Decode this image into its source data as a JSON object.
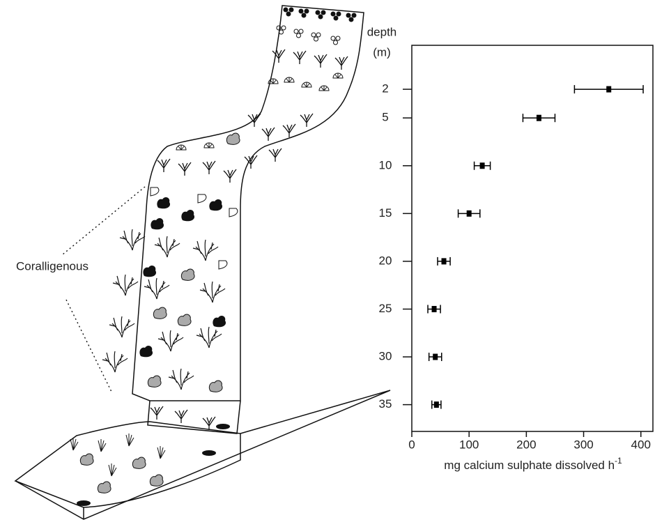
{
  "illustration": {
    "label": "Coralligenous"
  },
  "chart_data": {
    "type": "scatter",
    "ylabel": "depth",
    "ylabel_unit": "(m)",
    "xlabel": {
      "text": "mg calcium sulphate dissolved  h",
      "superscript": "-1"
    },
    "series": [
      {
        "color": "#000000",
        "y": [
          2,
          5,
          10,
          15,
          20,
          25,
          30,
          35
        ],
        "x": [
          344,
          222,
          123,
          100,
          56,
          39,
          41,
          43
        ],
        "xerr": [
          60,
          28,
          14,
          19,
          11,
          11,
          11,
          8
        ]
      }
    ],
    "xlim": [
      0,
      421
    ],
    "xticks": [
      0,
      100,
      200,
      300,
      400
    ],
    "ylim": [
      -2.6,
      37.8
    ],
    "yticks": [
      2,
      5,
      10,
      15,
      20,
      25,
      30,
      35
    ],
    "y_inverted": true,
    "grid": false
  }
}
